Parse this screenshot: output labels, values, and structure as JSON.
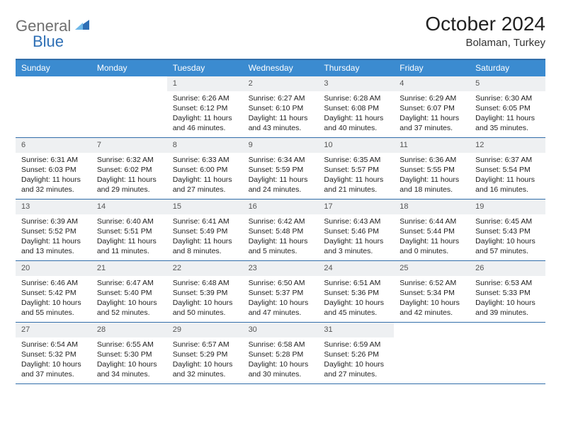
{
  "brand": {
    "text1": "General",
    "text2": "Blue",
    "accent_color": "#2e6fb5",
    "gray": "#6f6f6f"
  },
  "title": "October 2024",
  "subtitle": "Bolaman, Turkey",
  "header_bg": "#3b8bd0",
  "border_color": "#326eaa",
  "daynum_bg": "#eef0f2",
  "dow": [
    "Sunday",
    "Monday",
    "Tuesday",
    "Wednesday",
    "Thursday",
    "Friday",
    "Saturday"
  ],
  "weeks": [
    [
      null,
      null,
      {
        "n": "1",
        "sr": "Sunrise: 6:26 AM",
        "ss": "Sunset: 6:12 PM",
        "dl": "Daylight: 11 hours and 46 minutes."
      },
      {
        "n": "2",
        "sr": "Sunrise: 6:27 AM",
        "ss": "Sunset: 6:10 PM",
        "dl": "Daylight: 11 hours and 43 minutes."
      },
      {
        "n": "3",
        "sr": "Sunrise: 6:28 AM",
        "ss": "Sunset: 6:08 PM",
        "dl": "Daylight: 11 hours and 40 minutes."
      },
      {
        "n": "4",
        "sr": "Sunrise: 6:29 AM",
        "ss": "Sunset: 6:07 PM",
        "dl": "Daylight: 11 hours and 37 minutes."
      },
      {
        "n": "5",
        "sr": "Sunrise: 6:30 AM",
        "ss": "Sunset: 6:05 PM",
        "dl": "Daylight: 11 hours and 35 minutes."
      }
    ],
    [
      {
        "n": "6",
        "sr": "Sunrise: 6:31 AM",
        "ss": "Sunset: 6:03 PM",
        "dl": "Daylight: 11 hours and 32 minutes."
      },
      {
        "n": "7",
        "sr": "Sunrise: 6:32 AM",
        "ss": "Sunset: 6:02 PM",
        "dl": "Daylight: 11 hours and 29 minutes."
      },
      {
        "n": "8",
        "sr": "Sunrise: 6:33 AM",
        "ss": "Sunset: 6:00 PM",
        "dl": "Daylight: 11 hours and 27 minutes."
      },
      {
        "n": "9",
        "sr": "Sunrise: 6:34 AM",
        "ss": "Sunset: 5:59 PM",
        "dl": "Daylight: 11 hours and 24 minutes."
      },
      {
        "n": "10",
        "sr": "Sunrise: 6:35 AM",
        "ss": "Sunset: 5:57 PM",
        "dl": "Daylight: 11 hours and 21 minutes."
      },
      {
        "n": "11",
        "sr": "Sunrise: 6:36 AM",
        "ss": "Sunset: 5:55 PM",
        "dl": "Daylight: 11 hours and 18 minutes."
      },
      {
        "n": "12",
        "sr": "Sunrise: 6:37 AM",
        "ss": "Sunset: 5:54 PM",
        "dl": "Daylight: 11 hours and 16 minutes."
      }
    ],
    [
      {
        "n": "13",
        "sr": "Sunrise: 6:39 AM",
        "ss": "Sunset: 5:52 PM",
        "dl": "Daylight: 11 hours and 13 minutes."
      },
      {
        "n": "14",
        "sr": "Sunrise: 6:40 AM",
        "ss": "Sunset: 5:51 PM",
        "dl": "Daylight: 11 hours and 11 minutes."
      },
      {
        "n": "15",
        "sr": "Sunrise: 6:41 AM",
        "ss": "Sunset: 5:49 PM",
        "dl": "Daylight: 11 hours and 8 minutes."
      },
      {
        "n": "16",
        "sr": "Sunrise: 6:42 AM",
        "ss": "Sunset: 5:48 PM",
        "dl": "Daylight: 11 hours and 5 minutes."
      },
      {
        "n": "17",
        "sr": "Sunrise: 6:43 AM",
        "ss": "Sunset: 5:46 PM",
        "dl": "Daylight: 11 hours and 3 minutes."
      },
      {
        "n": "18",
        "sr": "Sunrise: 6:44 AM",
        "ss": "Sunset: 5:44 PM",
        "dl": "Daylight: 11 hours and 0 minutes."
      },
      {
        "n": "19",
        "sr": "Sunrise: 6:45 AM",
        "ss": "Sunset: 5:43 PM",
        "dl": "Daylight: 10 hours and 57 minutes."
      }
    ],
    [
      {
        "n": "20",
        "sr": "Sunrise: 6:46 AM",
        "ss": "Sunset: 5:42 PM",
        "dl": "Daylight: 10 hours and 55 minutes."
      },
      {
        "n": "21",
        "sr": "Sunrise: 6:47 AM",
        "ss": "Sunset: 5:40 PM",
        "dl": "Daylight: 10 hours and 52 minutes."
      },
      {
        "n": "22",
        "sr": "Sunrise: 6:48 AM",
        "ss": "Sunset: 5:39 PM",
        "dl": "Daylight: 10 hours and 50 minutes."
      },
      {
        "n": "23",
        "sr": "Sunrise: 6:50 AM",
        "ss": "Sunset: 5:37 PM",
        "dl": "Daylight: 10 hours and 47 minutes."
      },
      {
        "n": "24",
        "sr": "Sunrise: 6:51 AM",
        "ss": "Sunset: 5:36 PM",
        "dl": "Daylight: 10 hours and 45 minutes."
      },
      {
        "n": "25",
        "sr": "Sunrise: 6:52 AM",
        "ss": "Sunset: 5:34 PM",
        "dl": "Daylight: 10 hours and 42 minutes."
      },
      {
        "n": "26",
        "sr": "Sunrise: 6:53 AM",
        "ss": "Sunset: 5:33 PM",
        "dl": "Daylight: 10 hours and 39 minutes."
      }
    ],
    [
      {
        "n": "27",
        "sr": "Sunrise: 6:54 AM",
        "ss": "Sunset: 5:32 PM",
        "dl": "Daylight: 10 hours and 37 minutes."
      },
      {
        "n": "28",
        "sr": "Sunrise: 6:55 AM",
        "ss": "Sunset: 5:30 PM",
        "dl": "Daylight: 10 hours and 34 minutes."
      },
      {
        "n": "29",
        "sr": "Sunrise: 6:57 AM",
        "ss": "Sunset: 5:29 PM",
        "dl": "Daylight: 10 hours and 32 minutes."
      },
      {
        "n": "30",
        "sr": "Sunrise: 6:58 AM",
        "ss": "Sunset: 5:28 PM",
        "dl": "Daylight: 10 hours and 30 minutes."
      },
      {
        "n": "31",
        "sr": "Sunrise: 6:59 AM",
        "ss": "Sunset: 5:26 PM",
        "dl": "Daylight: 10 hours and 27 minutes."
      },
      null,
      null
    ]
  ]
}
